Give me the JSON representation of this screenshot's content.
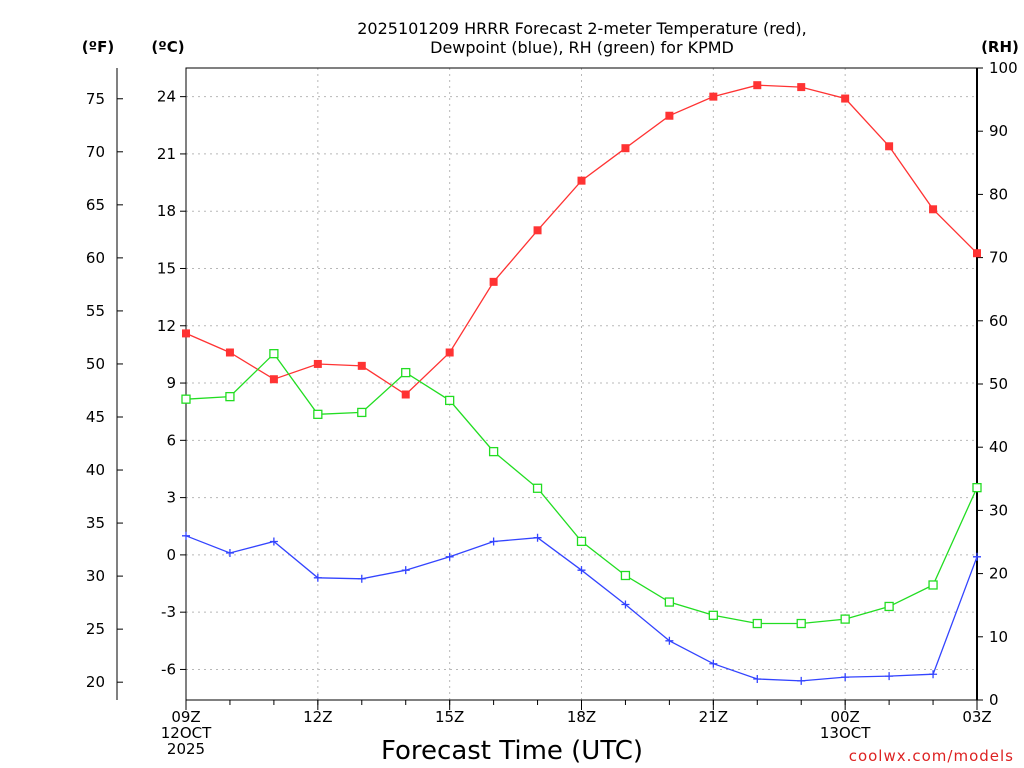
{
  "chart_data": {
    "type": "line",
    "title": "2025101209 HRRR Forecast 2-meter Temperature (red),",
    "subtitle": "Dewpoint (blue), RH (green) for KPMD",
    "xlabel": "Forecast Time (UTC)",
    "credit": "coolwx.com/models",
    "units": {
      "fahrenheit": "(ºF)",
      "celsius": "(ºC)",
      "rh": "(RH)"
    },
    "hours": [
      0,
      1,
      2,
      3,
      4,
      5,
      6,
      7,
      8,
      9,
      10,
      11,
      12,
      13,
      14,
      15,
      16,
      17,
      18
    ],
    "x_ticks": [
      {
        "hour": 0,
        "lines": [
          "09Z",
          "12OCT",
          "2025"
        ]
      },
      {
        "hour": 3,
        "lines": [
          "12Z"
        ]
      },
      {
        "hour": 6,
        "lines": [
          "15Z"
        ]
      },
      {
        "hour": 9,
        "lines": [
          "18Z"
        ]
      },
      {
        "hour": 12,
        "lines": [
          "21Z"
        ]
      },
      {
        "hour": 15,
        "lines": [
          "00Z",
          "13OCT"
        ]
      },
      {
        "hour": 18,
        "lines": [
          "03Z"
        ]
      }
    ],
    "y_celsius": {
      "min": -7.6,
      "max": 25.5,
      "ticks": [
        "24",
        "21",
        "18",
        "15",
        "12",
        "9",
        "6",
        "3",
        "0",
        "-3",
        "-6"
      ]
    },
    "y_fahrenheit": {
      "ticks": [
        "75",
        "70",
        "65",
        "60",
        "55",
        "50",
        "45",
        "40",
        "35",
        "30",
        "25",
        "20"
      ]
    },
    "y_rh": {
      "min": 0,
      "max": 100,
      "ticks": [
        "100",
        "90",
        "80",
        "70",
        "60",
        "50",
        "40",
        "30",
        "20",
        "10",
        "0"
      ]
    },
    "series": [
      {
        "name": "Temperature",
        "axis": "celsius",
        "color": "#ff3333",
        "marker": "filled-square",
        "values": [
          11.6,
          10.6,
          9.2,
          10.0,
          9.9,
          8.4,
          10.6,
          14.3,
          17.0,
          19.6,
          21.3,
          23.0,
          24.0,
          24.6,
          24.5,
          23.9,
          21.4,
          18.1,
          15.8
        ]
      },
      {
        "name": "Dewpoint",
        "axis": "celsius",
        "color": "#3344ff",
        "marker": "plus",
        "values": [
          1.0,
          0.1,
          0.7,
          -1.2,
          -1.25,
          -0.8,
          -0.1,
          0.7,
          0.9,
          -0.8,
          -2.6,
          -4.5,
          -5.7,
          -6.5,
          -6.6,
          -6.4,
          -6.35,
          -6.25,
          -0.1
        ]
      },
      {
        "name": "RH",
        "axis": "rh",
        "color": "#22dd22",
        "marker": "open-square",
        "values": [
          47.6,
          48.0,
          54.8,
          45.2,
          45.5,
          51.8,
          47.4,
          39.3,
          33.5,
          25.1,
          19.7,
          15.5,
          13.4,
          12.1,
          12.1,
          12.8,
          14.8,
          18.2,
          33.6
        ]
      }
    ]
  }
}
